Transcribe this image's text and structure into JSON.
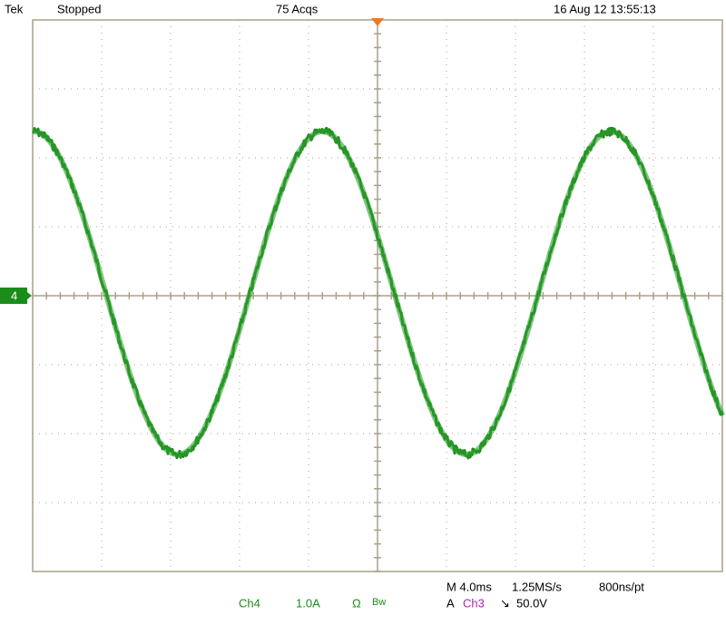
{
  "header": {
    "brand": "Tek",
    "status": "Stopped",
    "acquisitions": "75 Acqs",
    "timestamp": "16 Aug 12 13:55:13"
  },
  "channel_marker": "4",
  "readout": {
    "timebase": "M 4.0ms",
    "sample_rate": "1.25MS/s",
    "resolution": "800ns/pt",
    "channel": "Ch4",
    "scale": "1.0A",
    "coupling": "Ω",
    "bandwidth": "Bw",
    "trigger_mode": "A",
    "trigger_source": "Ch3",
    "trigger_slope": "↘",
    "trigger_level": "50.0V"
  }
}
